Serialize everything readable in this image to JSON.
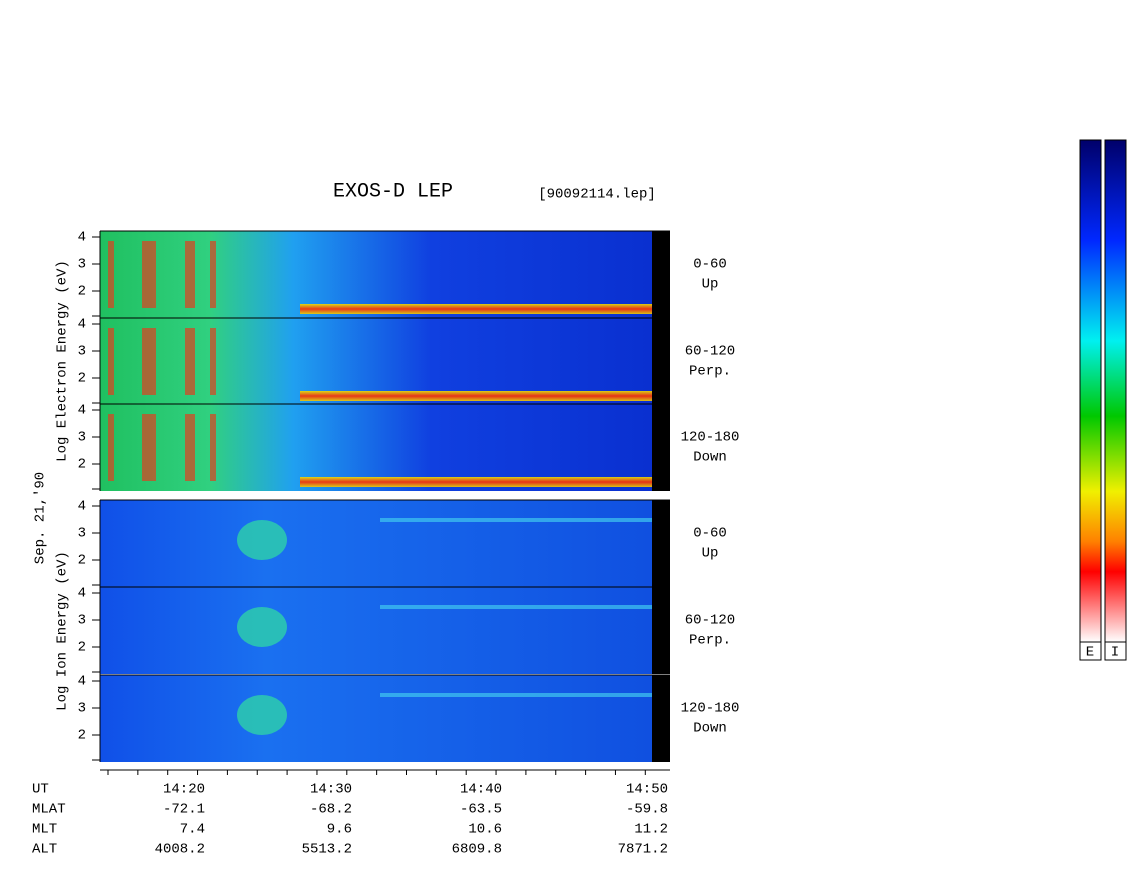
{
  "title": "EXOS-D LEP",
  "file": "[90092114.lep]",
  "date": "Sep. 21,'90",
  "groups": [
    {
      "ylabel": "Log  Electron  Energy (eV)",
      "panels": [
        {
          "yticks": [
            "4",
            "3",
            "2"
          ],
          "angle": "0-60",
          "direction": "Up"
        },
        {
          "yticks": [
            "4",
            "3",
            "2"
          ],
          "angle": "60-120",
          "direction": "Perp."
        },
        {
          "yticks": [
            "4",
            "3",
            "2"
          ],
          "angle": "120-180",
          "direction": "Down"
        }
      ]
    },
    {
      "ylabel": "Log  Ion  Energy (eV)",
      "panels": [
        {
          "yticks": [
            "4",
            "3",
            "2"
          ],
          "angle": "0-60",
          "direction": "Up"
        },
        {
          "yticks": [
            "4",
            "3",
            "2"
          ],
          "angle": "60-120",
          "direction": "Perp."
        },
        {
          "yticks": [
            "4",
            "3",
            "2"
          ],
          "angle": "120-180",
          "direction": "Down"
        }
      ]
    }
  ],
  "orbit": [
    [
      "UT",
      "14:20",
      "14:30",
      "14:40",
      "14:50"
    ],
    [
      "MLAT",
      "-72.1",
      "-68.2",
      "-63.5",
      "-59.8"
    ],
    [
      "MLT",
      "7.4",
      "9.6",
      "10.6",
      "11.2"
    ],
    [
      "ALT",
      "4008.2",
      "5513.2",
      "6809.8",
      "7871.2"
    ]
  ],
  "colorbars": [
    "E",
    "I"
  ]
}
